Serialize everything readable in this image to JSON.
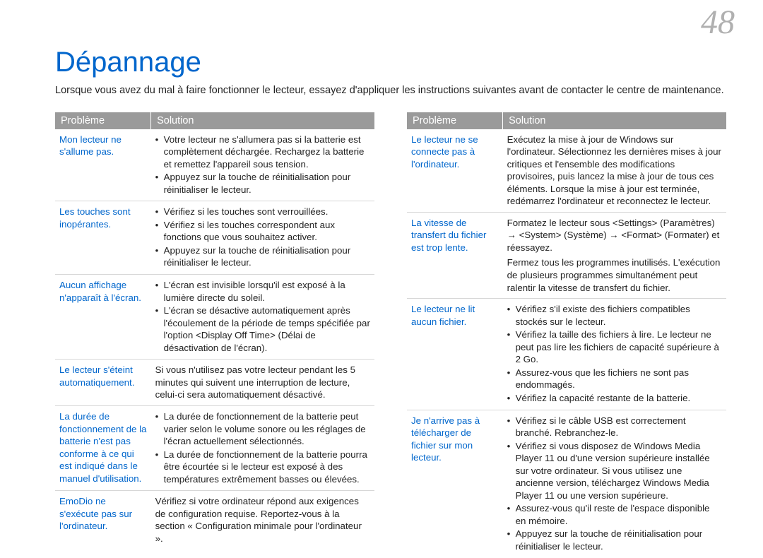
{
  "page_number": "48",
  "title": "Dépannage",
  "intro": "Lorsque vous avez du mal à faire fonctionner le lecteur, essayez d'appliquer les instructions suivantes avant de contacter le centre de maintenance.",
  "headers": {
    "problem": "Problème",
    "solution": "Solution"
  },
  "colors": {
    "accent": "#0066cc",
    "page_num": "#b0b0b0",
    "th_bg": "#9a9a9a",
    "th_fg": "#ffffff",
    "row_border": "#d7d7d7",
    "text": "#222222",
    "background": "#ffffff"
  },
  "typography": {
    "title_fontsize": 40,
    "page_num_fontsize": 48,
    "body_fontsize": 13.3,
    "th_fontsize": 14.5,
    "intro_fontsize": 14.5
  },
  "left_rows": [
    {
      "problem": "Mon lecteur ne s'allume pas.",
      "solution_type": "list",
      "solution_items": [
        "Votre lecteur ne s'allumera pas si la batterie est complètement déchargée. Rechargez la batterie et remettez l'appareil sous tension.",
        "Appuyez sur la touche de réinitialisation pour réinitialiser le lecteur."
      ]
    },
    {
      "problem": "Les touches sont inopérantes.",
      "solution_type": "list",
      "solution_items": [
        "Vérifiez si les touches sont verrouillées.",
        "Vérifiez si les touches correspondent aux fonctions que vous souhaitez activer.",
        "Appuyez sur la touche de réinitialisation pour réinitialiser le lecteur."
      ]
    },
    {
      "problem": "Aucun affichage n'apparaît à l'écran.",
      "solution_type": "list",
      "solution_items": [
        "L'écran est invisible lorsqu'il est exposé à la lumière directe du soleil.",
        "L'écran se désactive automatiquement après l'écoulement de la période de temps spécifiée par l'option <Display Off Time> (Délai de désactivation de l'écran)."
      ]
    },
    {
      "problem": "Le lecteur s'éteint automatiquement.",
      "solution_type": "plain",
      "solution_text": "Si vous n'utilisez pas votre lecteur pendant les 5 minutes qui suivent une interruption de lecture, celui-ci sera automatiquement désactivé."
    },
    {
      "problem": "La durée de fonctionnement de la batterie n'est pas conforme à ce qui est indiqué dans le manuel d'utilisation.",
      "solution_type": "list",
      "solution_items": [
        "La durée de fonctionnement de la batterie peut varier selon le volume sonore ou les réglages de l'écran actuellement sélectionnés.",
        "La durée de fonctionnement de la batterie pourra être écourtée si le lecteur est exposé à des températures extrêmement basses ou élevées."
      ]
    },
    {
      "problem": "EmoDio ne s'exécute pas sur l'ordinateur.",
      "solution_type": "plain",
      "solution_text": "Vérifiez si votre ordinateur répond aux exigences de configuration requise. Reportez-vous à la section « Configuration minimale pour l'ordinateur »."
    }
  ],
  "right_rows": [
    {
      "problem": "Le lecteur ne se connecte pas à l'ordinateur.",
      "solution_type": "plain",
      "solution_text": "Exécutez la mise à jour de Windows sur l'ordinateur. Sélectionnez les dernières mises à jour critiques et l'ensemble des modifications provisoires, puis lancez la mise à jour de tous ces éléments. Lorsque la mise à jour est terminée, redémarrez l'ordinateur et reconnectez le lecteur."
    },
    {
      "problem": "La vitesse de transfert du fichier est trop lente.",
      "solution_type": "plain_multi",
      "solution_lines": [
        "Formatez le lecteur sous <Settings> (Paramètres) → <System> (Système) → <Format> (Formater) et réessayez.",
        "Fermez tous les programmes inutilisés. L'exécution de plusieurs programmes simultanément peut ralentir la vitesse de transfert du fichier."
      ]
    },
    {
      "problem": "Le lecteur ne lit aucun fichier.",
      "solution_type": "list",
      "solution_items": [
        "Vérifiez s'il existe des fichiers compatibles stockés sur le lecteur.",
        "Vérifiez la taille des fichiers à lire. Le lecteur ne peut pas lire les fichiers de capacité supérieure à 2 Go.",
        "Assurez-vous que les fichiers ne sont pas endommagés.",
        "Vérifiez la capacité restante de la batterie."
      ]
    },
    {
      "problem": "Je n'arrive pas à télécharger de fichier sur mon lecteur.",
      "solution_type": "list",
      "solution_items": [
        "Vérifiez si le câble USB est correctement branché. Rebranchez-le.",
        "Vérifiez si vous disposez de Windows Media Player 11 ou d'une version supérieure installée sur votre ordinateur. Si vous utilisez une ancienne version, téléchargez Windows Media Player 11 ou une version supérieure.",
        "Assurez-vous qu'il reste de l'espace disponible en mémoire.",
        "Appuyez sur la touche de réinitialisation pour réinitialiser le lecteur."
      ]
    }
  ]
}
